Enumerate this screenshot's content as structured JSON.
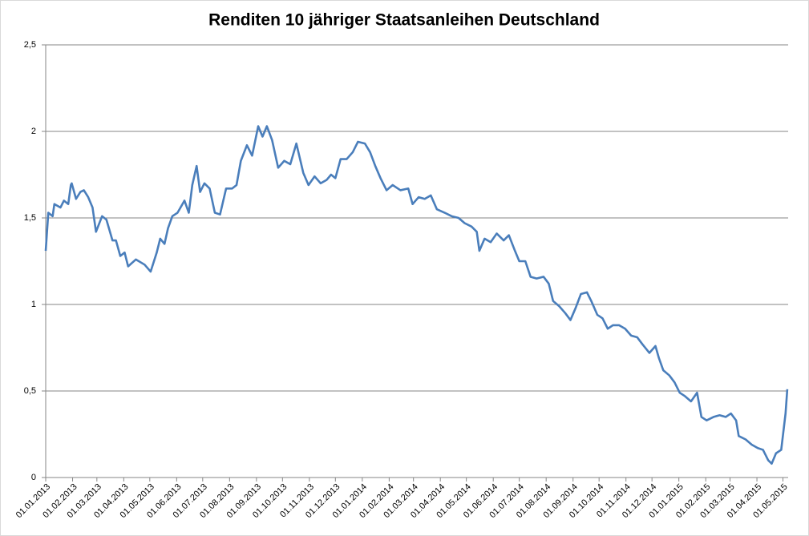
{
  "chart_data": {
    "type": "line",
    "title": "Renditen 10 jähriger Staatsanleihen Deutschland",
    "x": [
      "01.01.2013",
      "04.01.2013",
      "09.01.2013",
      "11.01.2013",
      "18.01.2013",
      "22.01.2013",
      "27.01.2013",
      "30.01.2013",
      "31.01.2013",
      "05.02.2013",
      "10.02.2013",
      "14.02.2013",
      "19.02.2013",
      "24.02.2013",
      "28.02.2013",
      "07.03.2013",
      "12.03.2013",
      "19.03.2013",
      "23.03.2013",
      "28.03.2013",
      "02.04.2013",
      "06.04.2013",
      "15.04.2013",
      "25.04.2013",
      "02.05.2013",
      "09.05.2013",
      "13.05.2013",
      "18.05.2013",
      "22.05.2013",
      "27.05.2013",
      "02.06.2013",
      "10.06.2013",
      "15.06.2013",
      "19.06.2013",
      "24.06.2013",
      "28.06.2013",
      "03.07.2013",
      "09.07.2013",
      "15.07.2013",
      "21.07.2013",
      "28.07.2013",
      "04.08.2013",
      "09.08.2013",
      "14.08.2013",
      "21.08.2013",
      "27.08.2013",
      "03.09.2013",
      "08.09.2013",
      "13.09.2013",
      "19.09.2013",
      "26.09.2013",
      "03.10.2013",
      "10.10.2013",
      "17.10.2013",
      "25.10.2013",
      "31.10.2013",
      "07.11.2013",
      "14.11.2013",
      "21.11.2013",
      "26.11.2013",
      "01.12.2013",
      "07.12.2013",
      "14.12.2013",
      "21.12.2013",
      "27.12.2013",
      "04.01.2014",
      "10.01.2014",
      "16.01.2014",
      "22.01.2014",
      "29.01.2014",
      "05.02.2014",
      "14.02.2014",
      "23.02.2014",
      "28.02.2014",
      "07.03.2014",
      "14.03.2014",
      "21.03.2014",
      "28.03.2014",
      "06.04.2014",
      "14.04.2014",
      "22.04.2014",
      "29.04.2014",
      "07.05.2014",
      "13.05.2014",
      "16.05.2014",
      "22.05.2014",
      "29.05.2014",
      "05.06.2014",
      "13.06.2014",
      "19.06.2014",
      "26.06.2014",
      "01.07.2014",
      "08.07.2014",
      "14.07.2014",
      "21.07.2014",
      "29.07.2014",
      "04.08.2014",
      "09.08.2014",
      "16.08.2014",
      "23.08.2014",
      "29.08.2014",
      "04.09.2014",
      "10.09.2014",
      "17.09.2014",
      "22.09.2014",
      "29.09.2014",
      "05.10.2014",
      "11.10.2014",
      "17.10.2014",
      "24.10.2014",
      "31.10.2014",
      "07.11.2014",
      "14.11.2014",
      "20.11.2014",
      "28.11.2014",
      "05.12.2014",
      "09.12.2014",
      "14.12.2014",
      "21.12.2014",
      "27.12.2014",
      "02.01.2015",
      "08.01.2015",
      "15.01.2015",
      "22.01.2015",
      "27.01.2015",
      "02.02.2015",
      "10.02.2015",
      "17.02.2015",
      "24.02.2015",
      "02.03.2015",
      "08.03.2015",
      "11.03.2015",
      "19.03.2015",
      "26.03.2015",
      "02.04.2015",
      "08.04.2015",
      "14.04.2015",
      "18.04.2015",
      "23.04.2015",
      "29.04.2015",
      "04.05.2015",
      "06.05.2015"
    ],
    "series": [
      {
        "name": "Rendite",
        "color": "#4a7ebb",
        "values": [
          1.31,
          1.53,
          1.51,
          1.58,
          1.56,
          1.6,
          1.58,
          1.69,
          1.7,
          1.61,
          1.65,
          1.66,
          1.62,
          1.56,
          1.42,
          1.51,
          1.49,
          1.37,
          1.37,
          1.28,
          1.3,
          1.22,
          1.26,
          1.23,
          1.19,
          1.3,
          1.38,
          1.35,
          1.44,
          1.51,
          1.53,
          1.6,
          1.53,
          1.69,
          1.8,
          1.65,
          1.7,
          1.67,
          1.53,
          1.52,
          1.67,
          1.67,
          1.69,
          1.83,
          1.92,
          1.86,
          2.03,
          1.97,
          2.03,
          1.95,
          1.79,
          1.83,
          1.81,
          1.93,
          1.76,
          1.69,
          1.74,
          1.7,
          1.72,
          1.75,
          1.73,
          1.84,
          1.84,
          1.88,
          1.94,
          1.93,
          1.88,
          1.8,
          1.73,
          1.66,
          1.69,
          1.66,
          1.67,
          1.58,
          1.62,
          1.61,
          1.63,
          1.55,
          1.53,
          1.51,
          1.5,
          1.47,
          1.45,
          1.42,
          1.31,
          1.38,
          1.36,
          1.41,
          1.37,
          1.4,
          1.31,
          1.25,
          1.25,
          1.16,
          1.15,
          1.16,
          1.12,
          1.02,
          0.99,
          0.95,
          0.91,
          0.98,
          1.06,
          1.07,
          1.02,
          0.94,
          0.92,
          0.86,
          0.88,
          0.88,
          0.86,
          0.82,
          0.81,
          0.77,
          0.72,
          0.76,
          0.69,
          0.62,
          0.59,
          0.55,
          0.49,
          0.47,
          0.44,
          0.49,
          0.35,
          0.33,
          0.35,
          0.36,
          0.35,
          0.37,
          0.33,
          0.24,
          0.22,
          0.19,
          0.17,
          0.16,
          0.1,
          0.08,
          0.14,
          0.16,
          0.37,
          0.51
        ]
      }
    ],
    "xlim": [
      "01.01.2013",
      "07.05.2015"
    ],
    "xticks": [
      "01.01.2013",
      "01.02.2013",
      "01.03.2013",
      "01.04.2013",
      "01.05.2013",
      "01.06.2013",
      "01.07.2013",
      "01.08.2013",
      "01.09.2013",
      "01.10.2013",
      "01.11.2013",
      "01.12.2013",
      "01.01.2014",
      "01.02.2014",
      "01.03.2014",
      "01.04.2014",
      "01.05.2014",
      "01.06.2014",
      "01.07.2014",
      "01.08.2014",
      "01.09.2014",
      "01.10.2014",
      "01.11.2014",
      "01.12.2014",
      "01.01.2015",
      "01.02.2015",
      "01.03.2015",
      "01.04.2015",
      "01.05.2015"
    ],
    "ylim": [
      0,
      2.5
    ],
    "yticks": [
      0,
      {
        "value": 0.5,
        "label": "0,5"
      },
      1,
      {
        "value": 1.5,
        "label": "1,5"
      },
      2,
      {
        "value": 2.5,
        "label": "2,5"
      }
    ],
    "grid": true
  }
}
